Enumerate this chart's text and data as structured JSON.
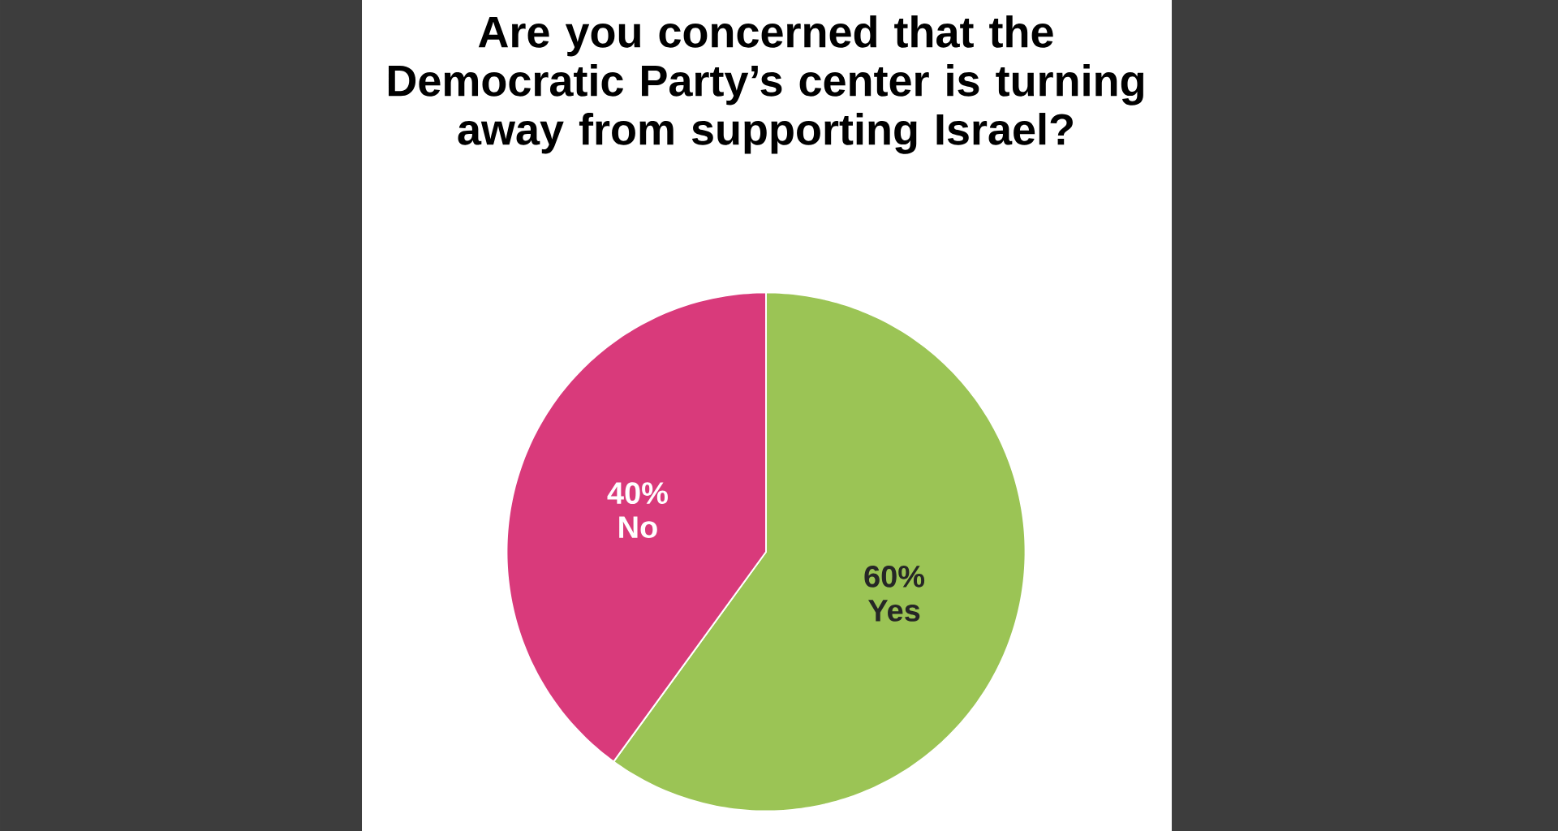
{
  "chart_data": {
    "type": "pie",
    "title": "Are you concerned that the Democratic Party’s center is turning away from supporting Israel?",
    "categories": [
      "Yes",
      "No"
    ],
    "values": [
      60,
      40
    ],
    "value_labels": [
      "60%",
      "40%"
    ],
    "colors": [
      "#9bc455",
      "#d93a7b"
    ]
  }
}
